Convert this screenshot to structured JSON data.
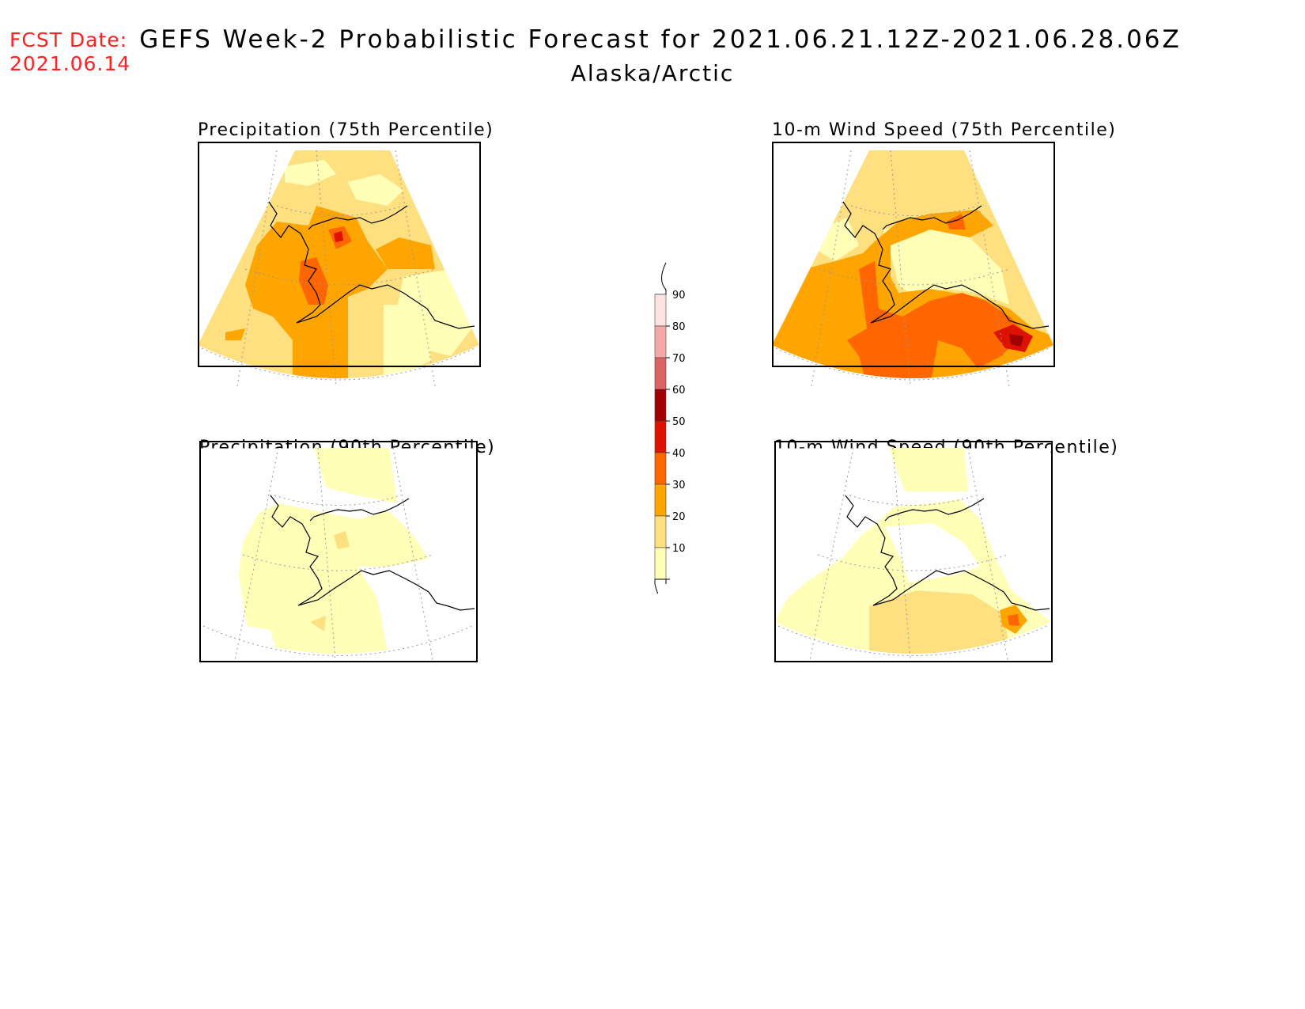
{
  "header": {
    "fcst_label": "FCST Date:",
    "fcst_date": "2021.06.14",
    "title": "GEFS Week-2 Probabilistic Forecast for 2021.06.21.12Z-2021.06.28.06Z",
    "region": "Alaska/Arctic"
  },
  "panels": [
    {
      "id": "precip-75",
      "title": "Precipitation (75th Percentile)"
    },
    {
      "id": "wind-75",
      "title": "10-m Wind Speed (75th Percentile)"
    },
    {
      "id": "precip-90",
      "title": "Precipitation (90th Percentile)"
    },
    {
      "id": "wind-90",
      "title": "10-m Wind Speed (90th Percentile)"
    }
  ],
  "colorbar": {
    "labels": [
      "90",
      "80",
      "70",
      "60",
      "50",
      "40",
      "30",
      "20",
      "10"
    ],
    "colors": [
      "#fbe3e3",
      "#f4a8a8",
      "#dd6464",
      "#a00000",
      "#dd1200",
      "#ff6600",
      "#ffa500",
      "#ffe080",
      "#ffffb8"
    ]
  },
  "palette": {
    "p10": "#ffffb8",
    "p20": "#ffe080",
    "p30": "#ffa500",
    "p40": "#ff6600",
    "p50": "#dd1200",
    "p60": "#a00000",
    "p70": "#dd6464"
  }
}
